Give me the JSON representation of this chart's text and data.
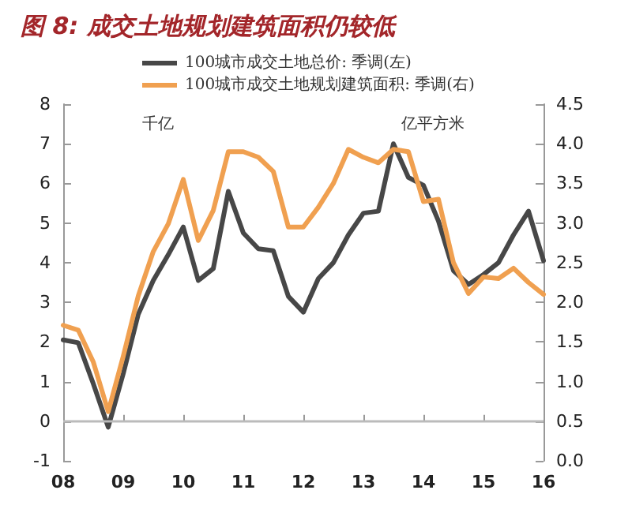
{
  "chart_data": {
    "type": "line",
    "title": "图 8: 成交土地规划建筑面积仍较低",
    "ylabel": "千亿",
    "y2label": "亿平方米",
    "x": [
      2008,
      2008.25,
      2008.5,
      2008.75,
      2009,
      2009.25,
      2009.5,
      2009.75,
      2010,
      2010.25,
      2010.5,
      2010.75,
      2011,
      2011.25,
      2011.5,
      2011.75,
      2012,
      2012.25,
      2012.5,
      2012.75,
      2013,
      2013.25,
      2013.5,
      2013.75,
      2014,
      2014.25,
      2014.5,
      2014.75,
      2015,
      2015.25,
      2015.5,
      2015.75,
      2016
    ],
    "series": [
      {
        "name": "100城市成交土地总价: 季调(左)",
        "color": "#474747",
        "values": [
          2.05,
          1.98,
          0.95,
          -0.15,
          1.2,
          2.7,
          3.55,
          4.2,
          4.9,
          3.55,
          3.85,
          5.8,
          4.75,
          4.35,
          4.3,
          3.15,
          2.75,
          3.6,
          4.0,
          4.7,
          5.25,
          5.3,
          7.0,
          6.15,
          5.95,
          5.05,
          3.8,
          3.45,
          3.7,
          4.0,
          4.7,
          5.3,
          4.05
        ]
      },
      {
        "name": "100城市成交土地规划建筑面积: 季调(右)",
        "color": "#f0a050",
        "axis": "y2",
        "values": [
          1.71,
          1.65,
          1.25,
          0.62,
          1.32,
          2.08,
          2.64,
          2.99,
          3.55,
          2.78,
          3.16,
          3.9,
          3.9,
          3.83,
          3.65,
          2.95,
          2.95,
          3.2,
          3.5,
          3.93,
          3.83,
          3.76,
          3.93,
          3.9,
          3.27,
          3.3,
          2.5,
          2.11,
          2.32,
          2.3,
          2.43,
          2.25,
          2.1
        ]
      }
    ],
    "xlim": [
      2008,
      2016
    ],
    "xticks": [
      {
        "value": 2008,
        "label": "08"
      },
      {
        "value": 2009,
        "label": "09"
      },
      {
        "value": 2010,
        "label": "10"
      },
      {
        "value": 2011,
        "label": "11"
      },
      {
        "value": 2012,
        "label": "12"
      },
      {
        "value": 2013,
        "label": "13"
      },
      {
        "value": 2014,
        "label": "14"
      },
      {
        "value": 2015,
        "label": "15"
      },
      {
        "value": 2016,
        "label": "16"
      }
    ],
    "ylim": [
      -1,
      8
    ],
    "yticks": [
      -1,
      0,
      1,
      2,
      3,
      4,
      5,
      6,
      7,
      8
    ],
    "y2lim": [
      0,
      4.5
    ],
    "y2ticks": [
      {
        "value": 0,
        "label": "0.0"
      },
      {
        "value": 0.5,
        "label": "0.5"
      },
      {
        "value": 1,
        "label": "1.0"
      },
      {
        "value": 1.5,
        "label": "1.5"
      },
      {
        "value": 2,
        "label": "2.0"
      },
      {
        "value": 2.5,
        "label": "2.5"
      },
      {
        "value": 3,
        "label": "3.0"
      },
      {
        "value": 3.5,
        "label": "3.5"
      },
      {
        "value": 4,
        "label": "4.0"
      },
      {
        "value": 4.5,
        "label": "4.5"
      }
    ],
    "ref_lines": [
      {
        "axis": "y",
        "value": 0,
        "color": "#bbbbbb"
      }
    ],
    "legend": "top",
    "grid": false,
    "marker": "none",
    "line_style": "solid"
  }
}
